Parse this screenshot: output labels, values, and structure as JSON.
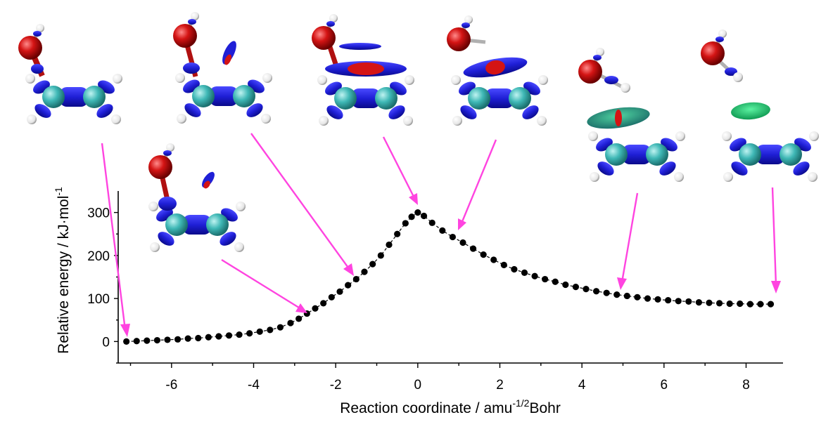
{
  "chart_data": {
    "type": "scatter",
    "xlabel_main": "Reaction coordinate / amu",
    "xlabel_sup": "-1/2",
    "xlabel_tail": "Bohr",
    "ylabel_main": "Relative energy / kJ·mol",
    "ylabel_sup": "-1",
    "xlim": [
      -7.3,
      8.9
    ],
    "ylim": [
      -50,
      350
    ],
    "x_ticks": [
      -6,
      -4,
      -2,
      0,
      2,
      4,
      6,
      8
    ],
    "x_tick_labels": [
      "-6",
      "-4",
      "-2",
      "0",
      "2",
      "4",
      "6",
      "8"
    ],
    "y_ticks": [
      0,
      100,
      200,
      300
    ],
    "y_tick_labels": [
      "0",
      "100",
      "200",
      "300"
    ],
    "series": [
      {
        "marker_color": "#000000",
        "line_style": "dashed",
        "x": [
          -7.1,
          -6.85,
          -6.6,
          -6.35,
          -6.1,
          -5.85,
          -5.6,
          -5.35,
          -5.1,
          -4.85,
          -4.6,
          -4.35,
          -4.1,
          -3.85,
          -3.6,
          -3.35,
          -3.1,
          -2.9,
          -2.7,
          -2.5,
          -2.3,
          -2.1,
          -1.9,
          -1.7,
          -1.5,
          -1.3,
          -1.1,
          -0.9,
          -0.7,
          -0.5,
          -0.3,
          -0.15,
          0.0,
          0.15,
          0.35,
          0.6,
          0.85,
          1.1,
          1.35,
          1.6,
          1.85,
          2.1,
          2.35,
          2.6,
          2.85,
          3.1,
          3.35,
          3.6,
          3.85,
          4.1,
          4.35,
          4.6,
          4.85,
          5.1,
          5.35,
          5.6,
          5.85,
          6.1,
          6.35,
          6.6,
          6.85,
          7.1,
          7.35,
          7.6,
          7.85,
          8.1,
          8.35,
          8.6
        ],
        "y": [
          0,
          1,
          2,
          3,
          4,
          5,
          7,
          8,
          10,
          12,
          14,
          16,
          19,
          23,
          27,
          33,
          43,
          53,
          65,
          77,
          89,
          103,
          116,
          131,
          145,
          162,
          180,
          200,
          225,
          250,
          275,
          290,
          300,
          292,
          276,
          258,
          243,
          230,
          216,
          202,
          190,
          178,
          168,
          160,
          152,
          145,
          139,
          132,
          127,
          122,
          117,
          113,
          109,
          106,
          103,
          100,
          98,
          96,
          94,
          93,
          91,
          90,
          89,
          88,
          88,
          87,
          87,
          87
        ]
      }
    ],
    "annotations": {
      "arrows": "magenta",
      "molecule_snapshots": 7
    }
  },
  "colors": {
    "arrow": "#ff44e0",
    "carbon": "#3fb8b6",
    "oxygen": "#d41414",
    "bond_region": "#1f1fd6",
    "green_region": "#19c36a",
    "hydrogen": "#ffffff"
  }
}
